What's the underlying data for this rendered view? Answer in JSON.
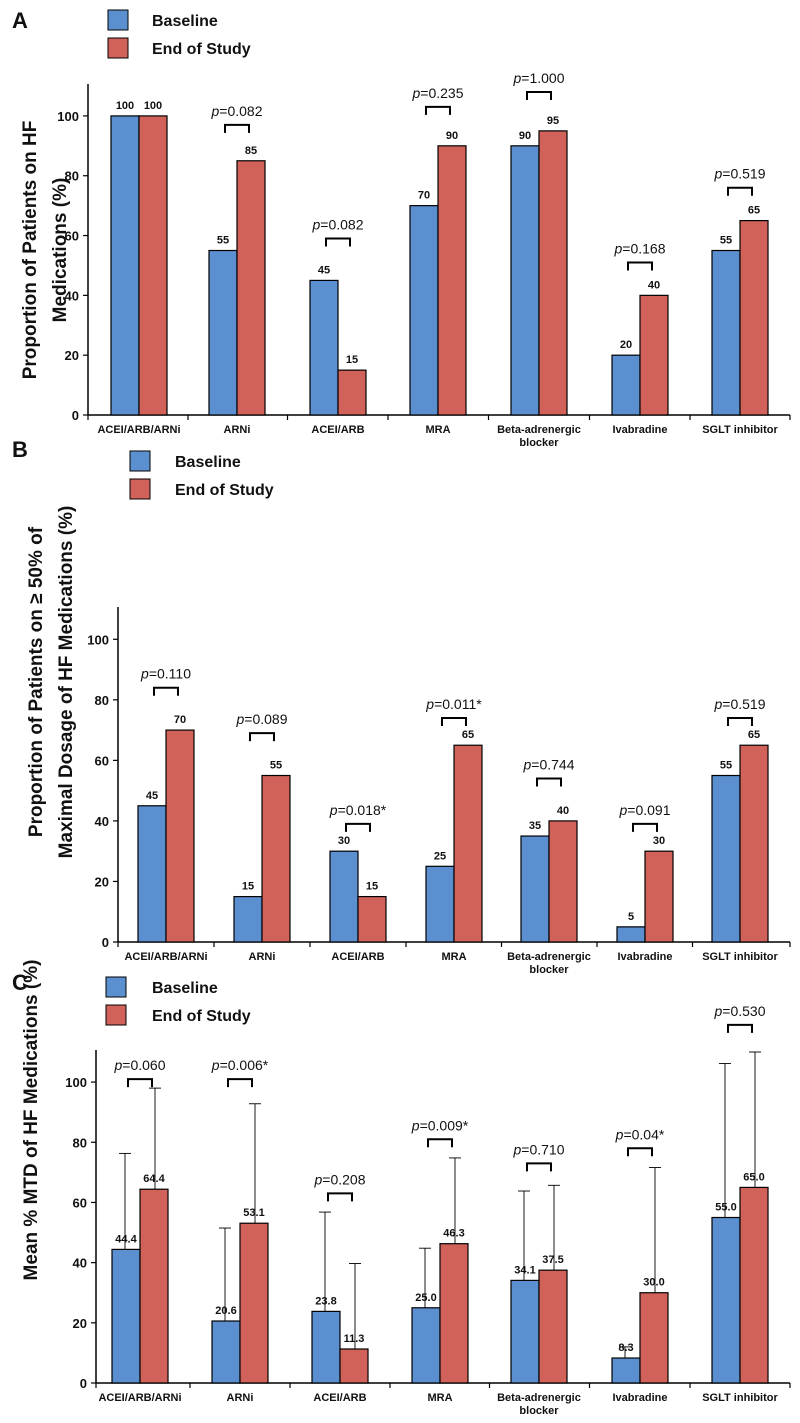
{
  "colors": {
    "baseline": "#5b8fcf",
    "end_of_study": "#d0625a",
    "axis": "#000000"
  },
  "legend": {
    "baseline": "Baseline",
    "end_of_study": "End of Study"
  },
  "chart_data": [
    {
      "panel": "A",
      "type": "bar",
      "ylabel_lines": [
        "Proportion of Patients on HF",
        "Medications (%)"
      ],
      "ylim": [
        0,
        110
      ],
      "yticks": [
        0,
        20,
        40,
        60,
        80,
        100
      ],
      "categories": [
        [
          "ACEI/ARB/ARNi"
        ],
        [
          "ARNi"
        ],
        [
          "ACEI/ARB"
        ],
        [
          "MRA"
        ],
        [
          "Beta-adrenergic",
          "blocker"
        ],
        [
          "Ivabradine"
        ],
        [
          "SGLT inhibitor"
        ]
      ],
      "series": [
        {
          "name": "Baseline",
          "values": [
            100,
            55,
            45,
            70,
            90,
            20,
            55
          ],
          "labels": [
            "100",
            "55",
            "45",
            "70",
            "90",
            "20",
            "55"
          ]
        },
        {
          "name": "End of Study",
          "values": [
            100,
            85,
            15,
            90,
            95,
            40,
            65
          ],
          "labels": [
            "100",
            "85",
            "15",
            "90",
            "95",
            "40",
            "65"
          ]
        }
      ],
      "pvalues": [
        null,
        "=0.082",
        "=0.082",
        "=0.235",
        "=1.000",
        "=0.168",
        "=0.519"
      ],
      "pvalue_y": [
        null,
        97,
        59,
        103,
        108,
        51,
        76
      ]
    },
    {
      "panel": "B",
      "type": "bar",
      "ylabel_lines": [
        "Proportion of Patients on ≥ 50% of",
        "Maximal Dosage of HF Medications (%)"
      ],
      "ylim": [
        0,
        110
      ],
      "yticks": [
        0,
        20,
        40,
        60,
        80,
        100
      ],
      "categories": [
        [
          "ACEI/ARB/ARNi"
        ],
        [
          "ARNi"
        ],
        [
          "ACEI/ARB"
        ],
        [
          "MRA"
        ],
        [
          "Beta-adrenergic",
          "blocker"
        ],
        [
          "Ivabradine"
        ],
        [
          "SGLT inhibitor"
        ]
      ],
      "series": [
        {
          "name": "Baseline",
          "values": [
            45,
            15,
            30,
            25,
            35,
            5,
            55
          ],
          "labels": [
            "45",
            "15",
            "30",
            "25",
            "35",
            "5",
            "55"
          ]
        },
        {
          "name": "End of Study",
          "values": [
            70,
            55,
            15,
            65,
            40,
            30,
            65
          ],
          "labels": [
            "70",
            "55",
            "15",
            "65",
            "40",
            "30",
            "65"
          ]
        }
      ],
      "pvalues": [
        "=0.110",
        "=0.089",
        "=0.018*",
        "=0.011*",
        "=0.744",
        "=0.091",
        "=0.519"
      ],
      "pvalue_y": [
        84,
        69,
        39,
        74,
        54,
        39,
        74
      ]
    },
    {
      "panel": "C",
      "type": "bar",
      "ylabel_lines": [
        "Mean % MTD of HF Medications (%)"
      ],
      "ylim": [
        0,
        110
      ],
      "yticks": [
        0,
        20,
        40,
        60,
        80,
        100
      ],
      "categories": [
        [
          "ACEI/ARB/ARNi"
        ],
        [
          "ARNi"
        ],
        [
          "ACEI/ARB"
        ],
        [
          "MRA"
        ],
        [
          "Beta-adrenergic",
          "blocker"
        ],
        [
          "Ivabradine"
        ],
        [
          "SGLT inhibitor"
        ]
      ],
      "series": [
        {
          "name": "Baseline",
          "values": [
            44.4,
            20.6,
            23.8,
            25.0,
            34.1,
            8.3,
            55.0
          ],
          "labels": [
            "44.4",
            "20.6",
            "23.8",
            "25.0",
            "34.1",
            "8.3",
            "55.0"
          ],
          "error_upper": [
            76.3,
            51.5,
            56.8,
            44.8,
            63.8,
            12,
            106.2
          ]
        },
        {
          "name": "End of Study",
          "values": [
            64.4,
            53.1,
            11.3,
            46.3,
            37.5,
            30.0,
            65.0
          ],
          "labels": [
            "64.4",
            "53.1",
            "11.3",
            "46.3",
            "37.5",
            "30.0",
            "65.0"
          ],
          "error_upper": [
            98.0,
            92.8,
            39.7,
            74.8,
            65.7,
            71.6,
            110
          ]
        }
      ],
      "pvalues": [
        "=0.060",
        "=0.006*",
        "=0.208",
        "=0.009*",
        "=0.710",
        "=0.04*",
        "=0.530"
      ],
      "pvalue_y": [
        101,
        101,
        63,
        81,
        73,
        78,
        119
      ]
    }
  ]
}
